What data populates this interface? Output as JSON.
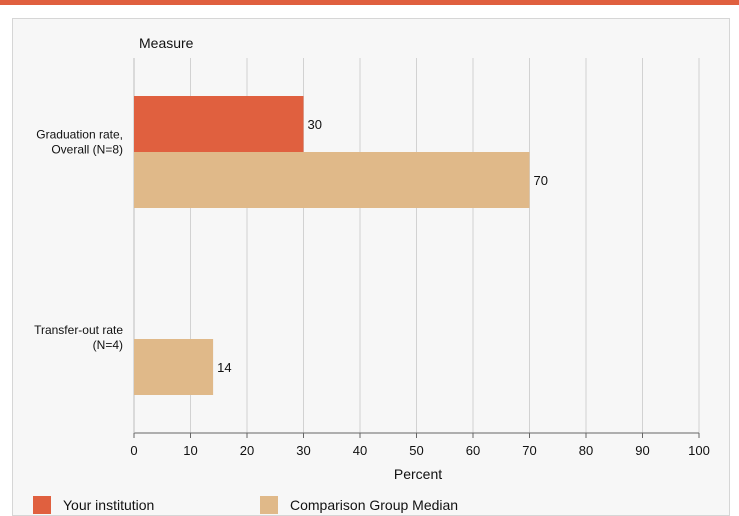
{
  "chart_data": {
    "type": "bar",
    "orientation": "horizontal",
    "title": "Measure",
    "xlabel": "Percent",
    "xlim": [
      0,
      100
    ],
    "xticks": [
      0,
      10,
      20,
      30,
      40,
      50,
      60,
      70,
      80,
      90,
      100
    ],
    "grid": true,
    "legend_placement": "bottom",
    "categories": [
      {
        "label_lines": [
          "Graduation rate,",
          "Overall (N=8)"
        ]
      },
      {
        "label_lines": [
          "Transfer-out rate",
          "(N=4)"
        ]
      }
    ],
    "series": [
      {
        "name": "Your institution",
        "color": "#e0603f",
        "values": [
          30,
          null
        ]
      },
      {
        "name": "Comparison Group Median",
        "color": "#e0b989",
        "values": [
          70,
          14
        ]
      }
    ]
  }
}
